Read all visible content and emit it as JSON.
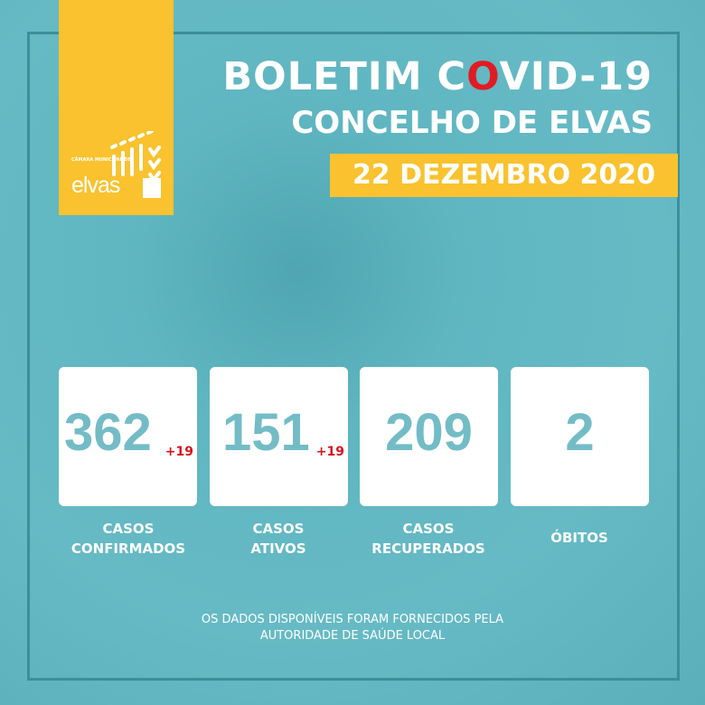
{
  "logo": {
    "small": "CÂMARA MUNICIPAL DE",
    "name": "elvas"
  },
  "title": {
    "part1": "BOLETIM C",
    "o": "O",
    "part2": "VID-19",
    "subtitle": "CONCELHO DE ELVAS",
    "date": "22 DEZEMBRO 2020"
  },
  "colors": {
    "accent": "#f9c22e",
    "background": "#5fb6c1",
    "number": "#73bcc6",
    "delta": "#d9141c"
  },
  "stats": [
    {
      "value": "362",
      "delta": "+19",
      "label1": "CASOS",
      "label2": "CONFIRMADOS"
    },
    {
      "value": "151",
      "delta": "+19",
      "label1": "CASOS",
      "label2": "ATIVOS"
    },
    {
      "value": "209",
      "label1": "CASOS",
      "label2": "RECUPERADOS"
    },
    {
      "value": "2",
      "label1": "ÓBITOS"
    }
  ],
  "footer": {
    "line1": "OS DADOS DISPONÍVEIS FORAM FORNECIDOS PELA",
    "line2": "AUTORIDADE DE SAÚDE LOCAL"
  }
}
